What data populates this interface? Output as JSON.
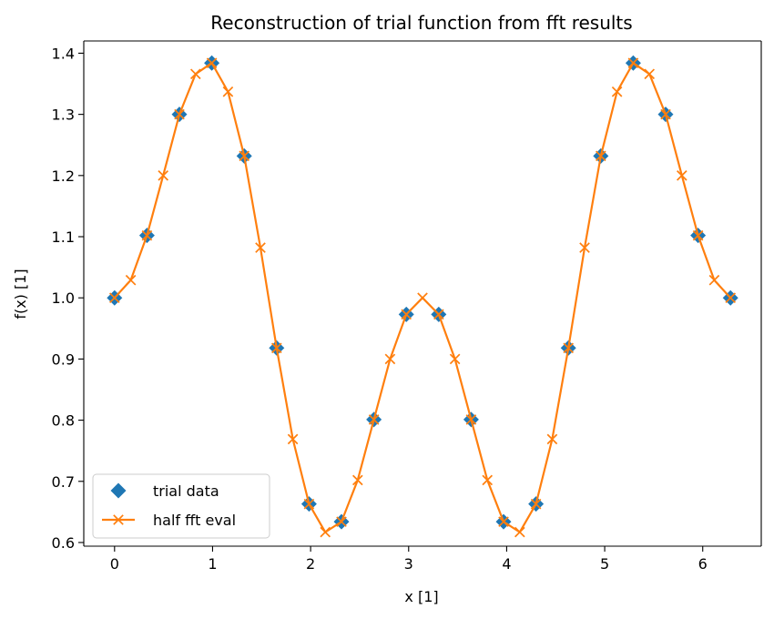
{
  "chart_data": {
    "type": "line",
    "title": "Reconstruction of trial function from fft results",
    "xlabel": "x [1]",
    "ylabel": "f(x) [1]",
    "xlim": [
      -0.314,
      6.597
    ],
    "ylim": [
      0.594,
      1.42
    ],
    "xticks": [
      0,
      1,
      2,
      3,
      4,
      5,
      6
    ],
    "xtick_labels": [
      "0",
      "1",
      "2",
      "3",
      "4",
      "5",
      "6"
    ],
    "yticks": [
      0.6,
      0.7,
      0.8,
      0.9,
      1.0,
      1.1,
      1.2,
      1.3,
      1.4
    ],
    "ytick_labels": [
      "0.6",
      "0.7",
      "0.8",
      "0.9",
      "1.0",
      "1.1",
      "1.2",
      "1.3",
      "1.4"
    ],
    "grid": false,
    "legend_position": "lower-left",
    "series": [
      {
        "name": "trial data",
        "style": "markers",
        "marker": "diamond",
        "color": "#1f77b4",
        "x": [
          0,
          0.3307,
          0.6614,
          0.9921,
          1.3228,
          1.6535,
          1.9842,
          2.3149,
          2.6456,
          2.9762,
          3.3069,
          3.6376,
          3.9683,
          4.299,
          4.6297,
          4.9604,
          5.2911,
          5.6218,
          5.9525,
          6.2832
        ],
        "y": [
          1.0,
          1.102,
          1.3,
          1.384,
          1.232,
          0.918,
          0.663,
          0.634,
          0.801,
          0.973,
          0.973,
          0.801,
          0.634,
          0.663,
          0.918,
          1.232,
          1.384,
          1.3,
          1.102,
          1.0
        ]
      },
      {
        "name": "half fft eval",
        "style": "line+markers",
        "marker": "x",
        "color": "#ff7f0e",
        "x": [
          0,
          0.1653,
          0.3307,
          0.496,
          0.6614,
          0.8267,
          0.9921,
          1.1574,
          1.3228,
          1.4881,
          1.6535,
          1.8188,
          1.9842,
          2.1495,
          2.3149,
          2.4802,
          2.6456,
          2.8109,
          2.9762,
          3.1416,
          3.3069,
          3.4723,
          3.6376,
          3.803,
          3.9683,
          4.1337,
          4.299,
          4.4644,
          4.6297,
          4.7951,
          4.9604,
          5.1258,
          5.2911,
          5.4565,
          5.6218,
          5.7872,
          5.9525,
          6.1179,
          6.2832
        ],
        "y": [
          1.0,
          1.029,
          1.102,
          1.2,
          1.3,
          1.366,
          1.384,
          1.337,
          1.232,
          1.082,
          0.918,
          0.769,
          0.663,
          0.617,
          0.634,
          0.702,
          0.801,
          0.9,
          0.973,
          1.0,
          0.973,
          0.9,
          0.801,
          0.702,
          0.634,
          0.617,
          0.663,
          0.769,
          0.918,
          1.082,
          1.232,
          1.337,
          1.384,
          1.366,
          1.3,
          1.2,
          1.102,
          1.029,
          1.0
        ]
      }
    ]
  }
}
